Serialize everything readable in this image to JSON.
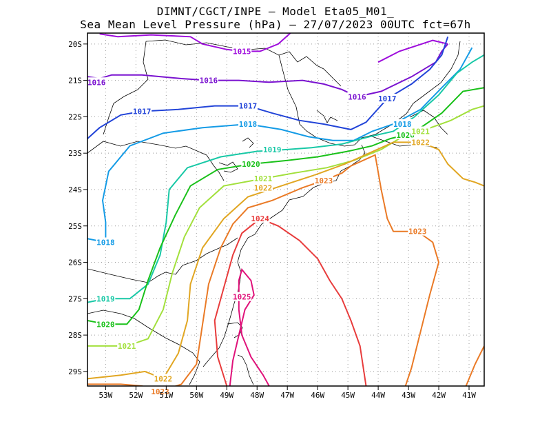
{
  "title_line1": "DIMNT/CGCT/INPE –  Model Eta05_M01_",
  "title_line2": "Sea Mean Level Pressure (hPa) – 27/07/2023 00UTC fct=67h",
  "chart_data": {
    "type": "contour-map",
    "variable": "Sea Mean Level Pressure",
    "units": "hPa",
    "model": "Eta05_M01",
    "run": "27/07/2023 00UTC",
    "forecast_hour": 67,
    "lon_range": [
      -53.6,
      -40.5
    ],
    "lat_range": [
      -29.4,
      -19.7
    ],
    "grid": true,
    "x_ticks": [
      "53W",
      "52W",
      "51W",
      "50W",
      "49W",
      "48W",
      "47W",
      "46W",
      "45W",
      "44W",
      "43W",
      "42W",
      "41W"
    ],
    "y_ticks": [
      "20S",
      "21S",
      "22S",
      "23S",
      "24S",
      "25S",
      "26S",
      "27S",
      "28S",
      "29S"
    ],
    "contours": [
      {
        "level": "1015",
        "color": "#9e0cdc",
        "label_lon": -48.5,
        "label_lat": -20.2
      },
      {
        "level": "1016",
        "color": "#7a12d0",
        "label_lon": -49.6,
        "label_lat": -21.0
      },
      {
        "level": "1016",
        "color": "#7a12d0",
        "label_lon": -53.3,
        "label_lat": -21.05
      },
      {
        "level": "1016",
        "color": "#7a12d0",
        "label_lon": -44.7,
        "label_lat": -21.45
      },
      {
        "level": "1017",
        "color": "#2244d8",
        "label_lon": -51.8,
        "label_lat": -21.85
      },
      {
        "level": "1017",
        "color": "#2244d8",
        "label_lon": -48.3,
        "label_lat": -21.7
      },
      {
        "level": "1017",
        "color": "#2244d8",
        "label_lon": -43.7,
        "label_lat": -21.5
      },
      {
        "level": "1018",
        "color": "#149be6",
        "label_lon": -48.3,
        "label_lat": -22.2
      },
      {
        "level": "1018",
        "color": "#149be6",
        "label_lon": -43.2,
        "label_lat": -22.2
      },
      {
        "level": "1018",
        "color": "#149be6",
        "label_lon": -53.0,
        "label_lat": -25.45
      },
      {
        "level": "1019",
        "color": "#18c8a6",
        "label_lon": -47.5,
        "label_lat": -22.9
      },
      {
        "level": "1019",
        "color": "#18c8a6",
        "label_lon": -53.0,
        "label_lat": -27.0
      },
      {
        "level": "1020",
        "color": "#1ac11a",
        "label_lon": -48.2,
        "label_lat": -23.3
      },
      {
        "level": "1020",
        "color": "#1ac11a",
        "label_lon": -43.1,
        "label_lat": -22.5
      },
      {
        "level": "1020",
        "color": "#1ac11a",
        "label_lon": -53.0,
        "label_lat": -27.7
      },
      {
        "level": "1021",
        "color": "#a2e03c",
        "label_lon": -47.8,
        "label_lat": -23.7
      },
      {
        "level": "1021",
        "color": "#a2e03c",
        "label_lon": -42.6,
        "label_lat": -22.4
      },
      {
        "level": "1021",
        "color": "#a2e03c",
        "label_lon": -52.3,
        "label_lat": -28.3
      },
      {
        "level": "1022",
        "color": "#e1a622",
        "label_lon": -47.8,
        "label_lat": -23.95
      },
      {
        "level": "1022",
        "color": "#e1a622",
        "label_lon": -42.6,
        "label_lat": -22.7
      },
      {
        "level": "1022",
        "color": "#e1a622",
        "label_lon": -51.1,
        "label_lat": -29.2
      },
      {
        "level": "1023",
        "color": "#ea7a26",
        "label_lon": -45.8,
        "label_lat": -23.75
      },
      {
        "level": "1023",
        "color": "#ea7a26",
        "label_lon": -42.7,
        "label_lat": -25.15
      },
      {
        "level": "1023",
        "color": "#ea7a26",
        "label_lon": -51.2,
        "label_lat": -29.55
      },
      {
        "level": "1024",
        "color": "#e83c3c",
        "label_lon": -47.9,
        "label_lat": -24.8
      },
      {
        "level": "1025",
        "color": "#e0127a",
        "label_lon": -48.5,
        "label_lat": -26.95
      }
    ]
  }
}
